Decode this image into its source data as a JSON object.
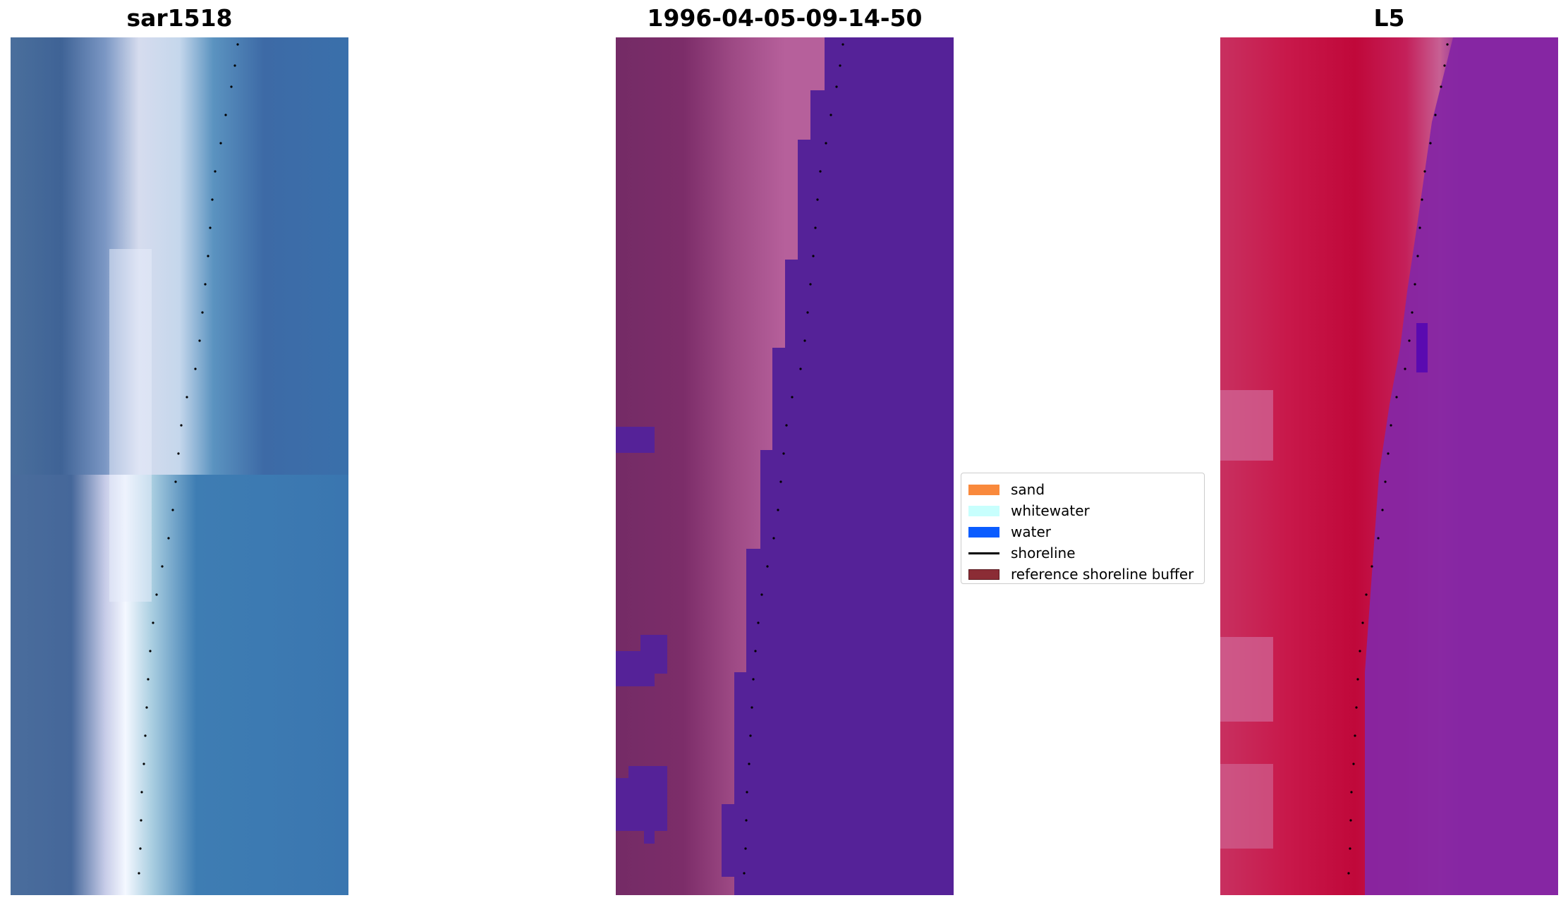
{
  "panels": [
    {
      "title": "sar1518",
      "image": "false-color satellite image (blue water, white surf zone)"
    },
    {
      "title": "1996-04-05-09-14-50",
      "image": "classified image (purple water, pink sand)"
    },
    {
      "title": "L5",
      "image": "index image (red land, purple water)"
    }
  ],
  "legend": {
    "items": [
      {
        "label": "sand",
        "color": "#f9893c",
        "kind": "patch"
      },
      {
        "label": "whitewater",
        "color": "#c8fffd",
        "kind": "patch"
      },
      {
        "label": "water",
        "color": "#0a5cff",
        "kind": "patch"
      },
      {
        "label": "shoreline",
        "color": "#000000",
        "kind": "line"
      },
      {
        "label": "reference shoreline buffer",
        "color": "#8b2c35",
        "kind": "patch",
        "edge": "#5a1a20"
      }
    ]
  }
}
